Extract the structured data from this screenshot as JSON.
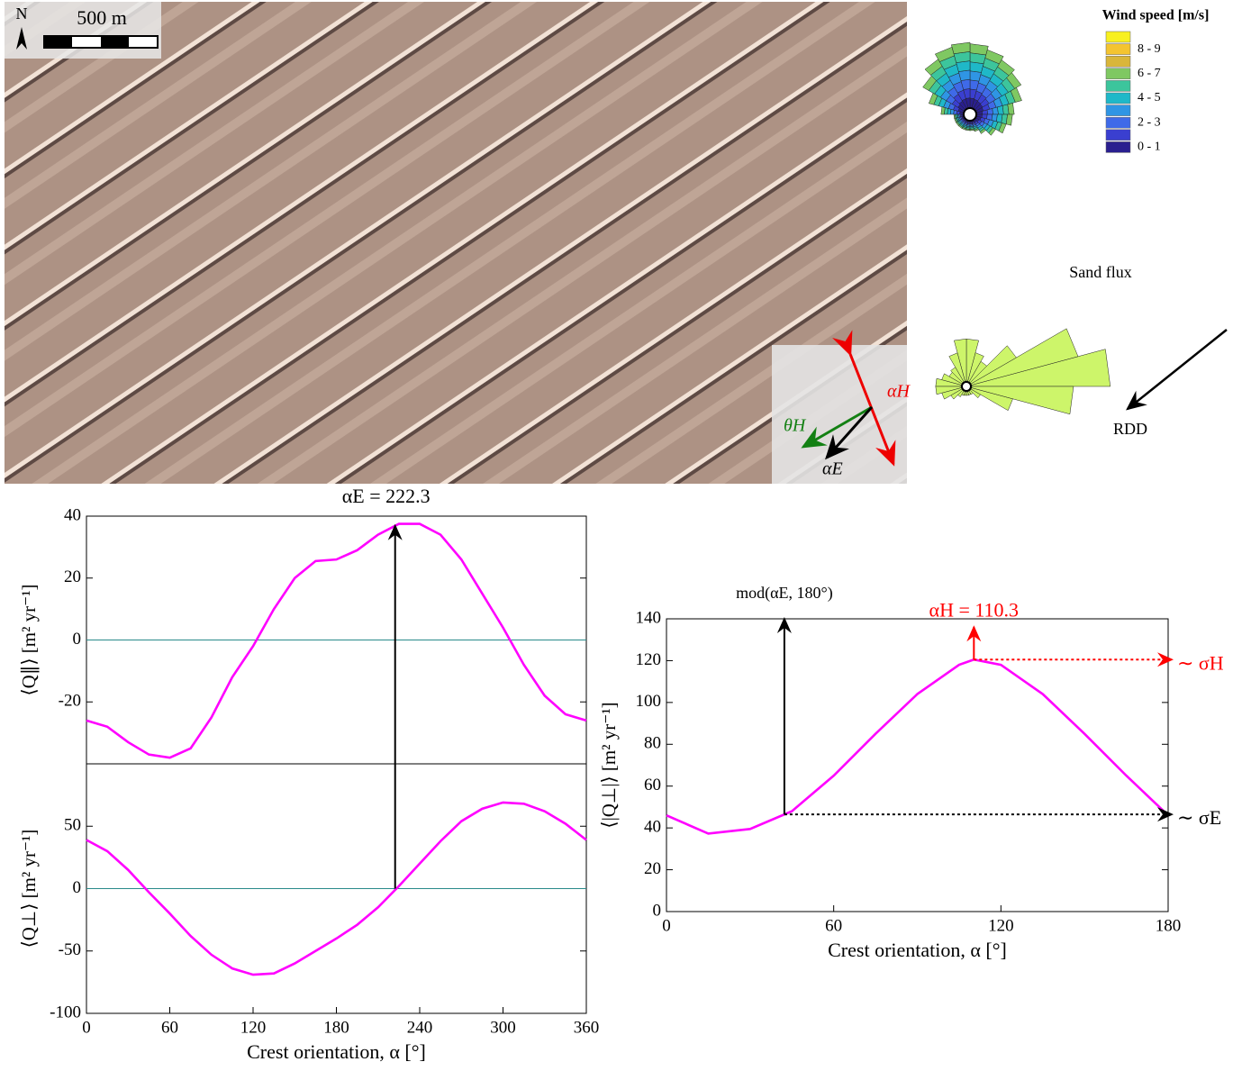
{
  "image_panel": {
    "north": "N",
    "scale": "500 m",
    "inset_labels": {
      "alpha_h": "αH",
      "theta_h": "θH",
      "alpha_e": "αE"
    },
    "wind_legend": {
      "title": "Wind speed [m/s]",
      "labels": [
        "8 - 9",
        "6 - 7",
        "4 - 5",
        "2 - 3",
        "0 - 1"
      ],
      "colors": [
        "#f8f020",
        "#f4c430",
        "#d9b63a",
        "#7fc862",
        "#3cc59c",
        "#1fb8c8",
        "#2f95e4",
        "#3f6ae8",
        "#3a3fd0",
        "#2a1f8f"
      ]
    },
    "sand_flux": "Sand flux",
    "rdd": "RDD"
  },
  "chart_data": [
    {
      "type": "line",
      "ylabel": "⟨Q∥⟩   [m² yr⁻¹]",
      "color": "#ff00ff",
      "hline": 0,
      "hline_color": "#2a8a8a",
      "x": [
        0,
        15,
        30,
        45,
        60,
        75,
        90,
        105,
        120,
        135,
        150,
        165,
        180,
        195,
        210,
        225,
        240,
        255,
        270,
        285,
        300,
        315,
        330,
        345,
        360
      ],
      "values": [
        -26,
        -28,
        -33,
        -37,
        -38,
        -35,
        -25,
        -12,
        -2,
        10,
        20,
        25.5,
        26,
        29,
        34,
        37.5,
        37.5,
        34,
        26,
        15,
        4,
        -8,
        -18,
        -24,
        -26
      ],
      "xlim": [
        0,
        360
      ],
      "ylim": [
        -40,
        40
      ],
      "yticks": [
        -20,
        0,
        20,
        40
      ],
      "annotations": [
        {
          "text": "αE = 222.3",
          "x": 222.3,
          "color": "#000000"
        }
      ]
    },
    {
      "type": "line",
      "ylabel": "⟨Q⊥⟩   [m² yr⁻¹]",
      "xlabel": "Crest orientation, α [°]",
      "color": "#ff00ff",
      "hline": 0,
      "hline_color": "#2a8a8a",
      "x": [
        0,
        15,
        30,
        45,
        60,
        75,
        90,
        105,
        120,
        135,
        150,
        165,
        180,
        195,
        210,
        225,
        240,
        255,
        270,
        285,
        300,
        315,
        330,
        345,
        360
      ],
      "values": [
        39,
        30,
        15,
        -3,
        -20,
        -38,
        -53,
        -64,
        -69,
        -68,
        -60,
        -50,
        -40,
        -29,
        -15,
        2,
        20,
        38,
        54,
        64,
        69,
        68,
        62,
        52,
        39
      ],
      "xlim": [
        0,
        360
      ],
      "ylim": [
        -100,
        100
      ],
      "yticks": [
        -100,
        -50,
        0,
        50
      ],
      "xticks": [
        0,
        60,
        120,
        180,
        240,
        300,
        360
      ]
    },
    {
      "type": "line",
      "ylabel": "⟨|Q⊥|⟩   [m² yr⁻¹]",
      "xlabel": "Crest orientation, α [°]",
      "color": "#ff00ff",
      "x": [
        0,
        15,
        30,
        45,
        60,
        75,
        90,
        105,
        110.3,
        120,
        135,
        150,
        165,
        180
      ],
      "values": [
        46,
        37.3,
        39.5,
        48,
        65,
        85,
        104,
        118,
        120.5,
        118,
        104,
        85,
        65,
        46
      ],
      "xlim": [
        0,
        180
      ],
      "ylim": [
        0,
        140
      ],
      "yticks": [
        0,
        20,
        40,
        60,
        80,
        100,
        120,
        140
      ],
      "xticks": [
        0,
        60,
        120,
        180
      ],
      "annotations": [
        {
          "text": "mod(αE, 180°)",
          "x": 42.3,
          "color": "#000000"
        },
        {
          "text": "αH = 110.3",
          "x": 110.3,
          "color": "#ff0000"
        }
      ],
      "level_labels": [
        {
          "text": "∼ σH",
          "x": 110.3,
          "color": "#ff0000"
        },
        {
          "text": "∼ σE",
          "x": 42.3,
          "color": "#000000"
        }
      ]
    }
  ]
}
